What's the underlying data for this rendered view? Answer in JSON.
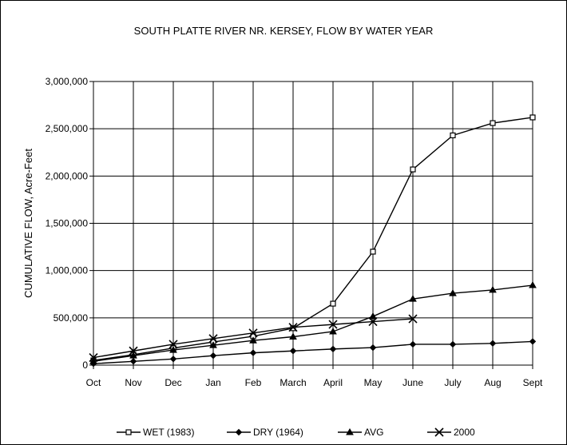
{
  "chart_data": {
    "type": "line",
    "title": "SOUTH PLATTE RIVER NR. KERSEY, FLOW BY WATER YEAR",
    "xlabel": "",
    "ylabel": "CUMULATIVE FLOW, Acre-Feet",
    "categories": [
      "Oct",
      "Nov",
      "Dec",
      "Jan",
      "Feb",
      "March",
      "April",
      "May",
      "June",
      "July",
      "Aug",
      "Sept"
    ],
    "ylim": [
      0,
      3000000
    ],
    "yticks": [
      0,
      500000,
      1000000,
      1500000,
      2000000,
      2500000,
      3000000
    ],
    "ytick_labels": [
      "0",
      "500,000",
      "1,000,000",
      "1,500,000",
      "2,000,000",
      "2,500,000",
      "3,000,000"
    ],
    "grid": true,
    "legend_position": "bottom",
    "series": [
      {
        "name": "WET (1983)",
        "marker": "square",
        "values": [
          50000,
          110000,
          180000,
          245000,
          305000,
          390000,
          650000,
          1200000,
          2070000,
          2430000,
          2560000,
          2620000
        ]
      },
      {
        "name": "DRY (1964)",
        "marker": "diamond",
        "values": [
          15000,
          40000,
          65000,
          100000,
          130000,
          150000,
          170000,
          185000,
          220000,
          220000,
          230000,
          250000
        ]
      },
      {
        "name": "AVG",
        "marker": "triangle",
        "values": [
          40000,
          100000,
          160000,
          210000,
          260000,
          300000,
          355000,
          515000,
          700000,
          760000,
          795000,
          845000
        ]
      },
      {
        "name": "2000",
        "marker": "x",
        "values": [
          80000,
          150000,
          220000,
          280000,
          340000,
          400000,
          430000,
          460000,
          490000,
          null,
          null,
          null
        ]
      }
    ]
  }
}
